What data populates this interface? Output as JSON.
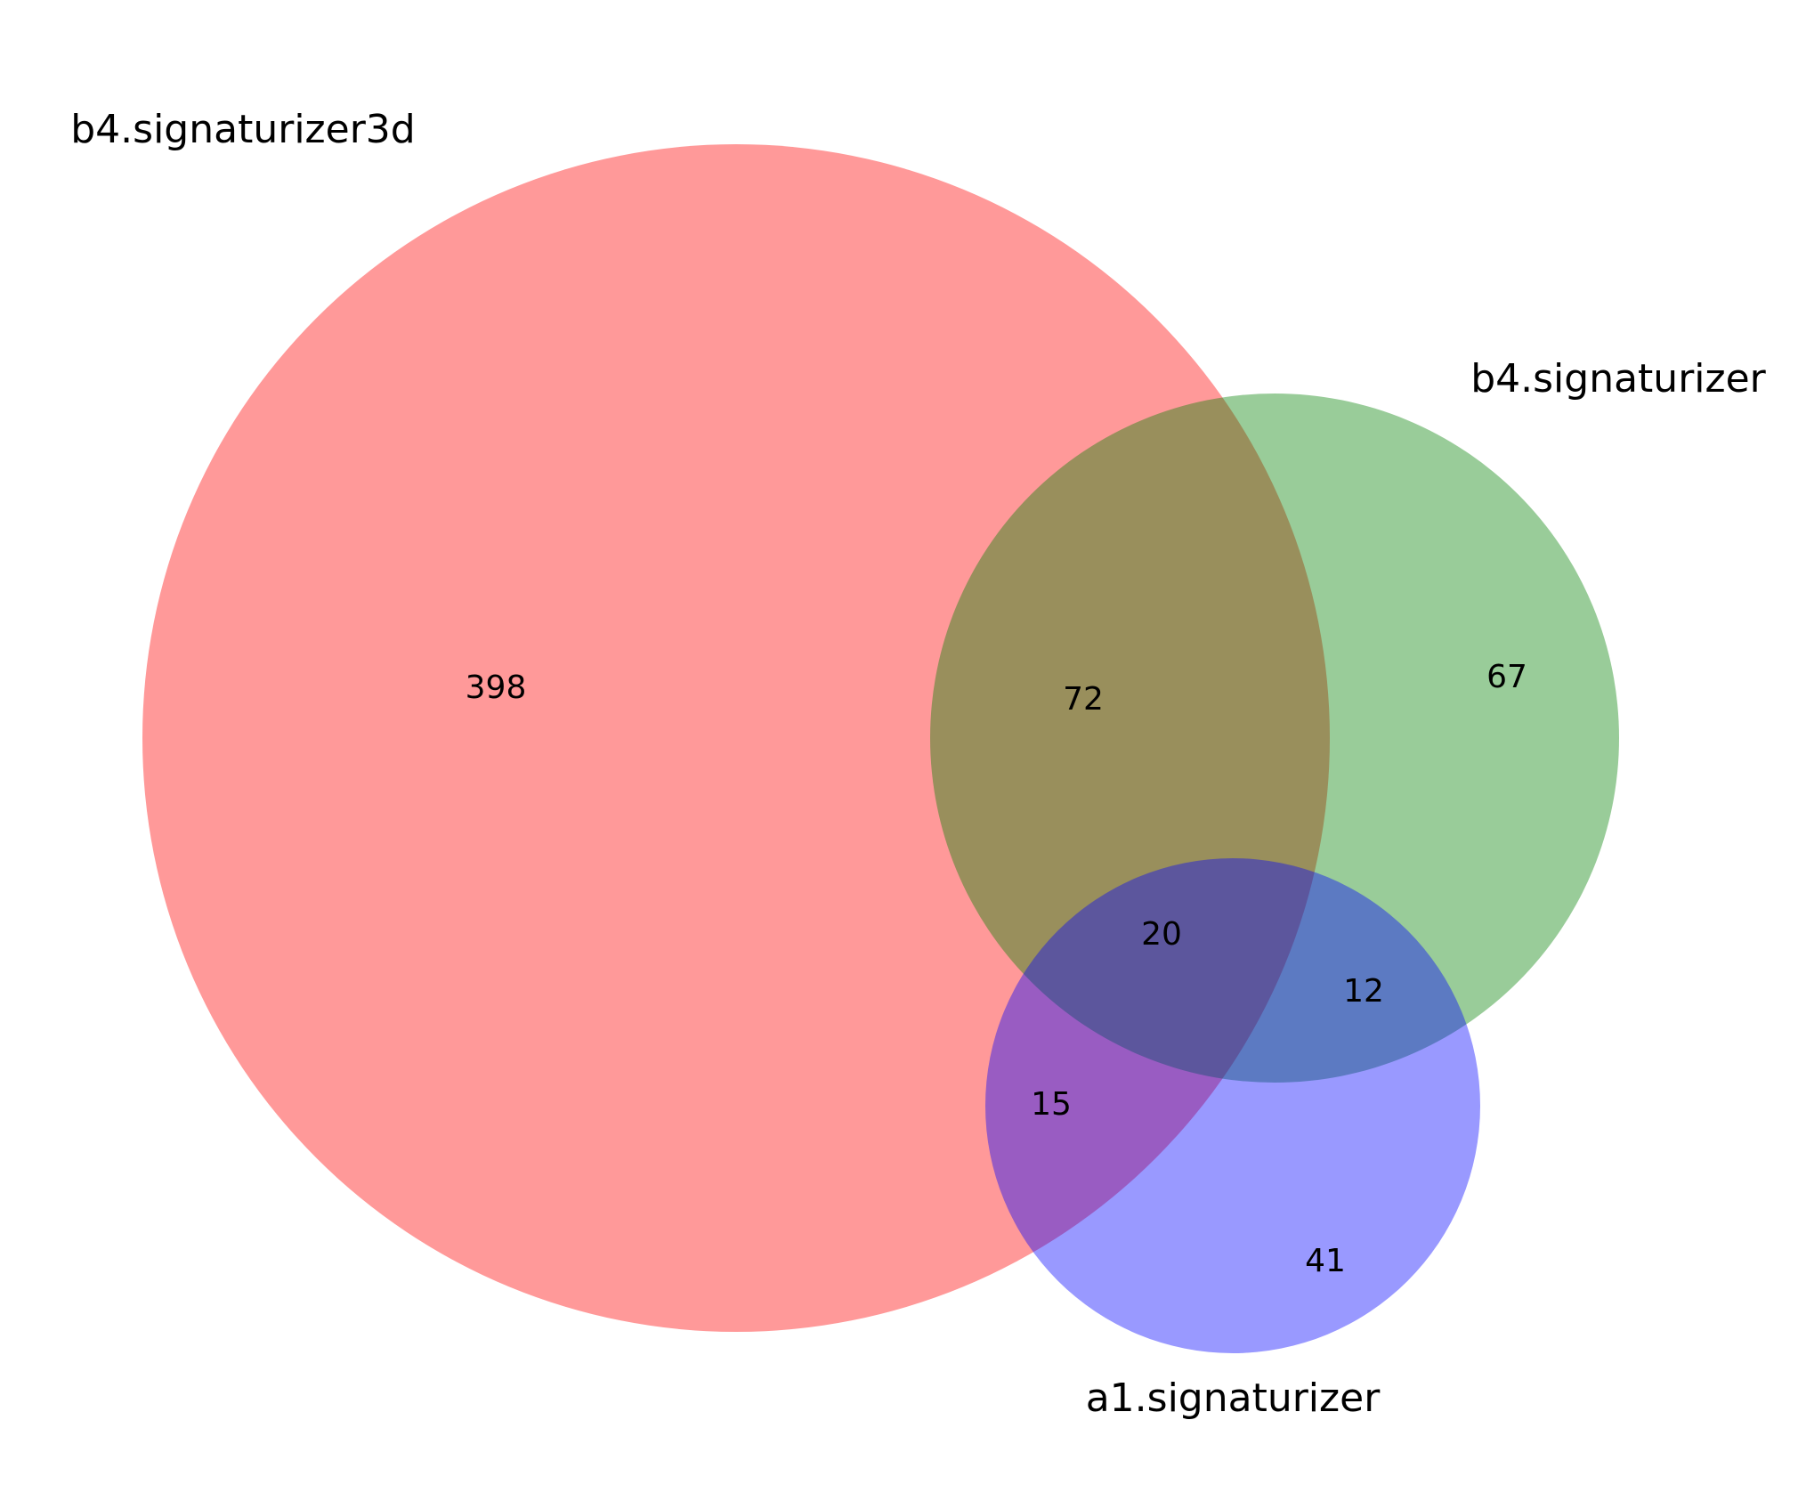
{
  "diagram": {
    "type": "venn3",
    "sets": [
      {
        "id": "A",
        "name": "b4.signaturizer3d",
        "color": "#ff0000",
        "alpha": 0.4
      },
      {
        "id": "B",
        "name": "b4.signaturizer",
        "color": "#008000",
        "alpha": 0.4
      },
      {
        "id": "C",
        "name": "a1.signaturizer",
        "color": "#0000ff",
        "alpha": 0.4
      }
    ],
    "regions": {
      "A_only": "398",
      "B_only": "67",
      "C_only": "41",
      "A_and_B": "72",
      "A_and_C": "15",
      "B_and_C": "12",
      "A_and_B_and_C": "20"
    }
  }
}
